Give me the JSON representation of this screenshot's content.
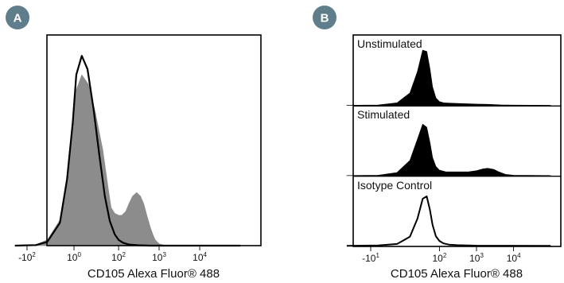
{
  "chart_data": [
    {
      "type": "area",
      "panel_label": "A",
      "xlabel": "CD105 Alexa Fluor® 488",
      "ylabel": "",
      "x_scale": "biexponential",
      "xlim": [
        -200,
        100000
      ],
      "ylim": [
        0,
        1.1
      ],
      "grid": false,
      "x_ticks": [
        {
          "value": -100,
          "base": "-10",
          "exp": "2"
        },
        {
          "value": 1,
          "base": "10",
          "exp": "0"
        },
        {
          "value": 100,
          "base": "10",
          "exp": "2"
        },
        {
          "value": 1000,
          "base": "10",
          "exp": "3"
        },
        {
          "value": 10000,
          "base": "10",
          "exp": "4"
        }
      ],
      "series": [
        {
          "fill": "#8c8c8c",
          "x": [
            -200,
            -60,
            -30,
            -10,
            -5,
            0,
            3,
            8,
            15,
            25,
            40,
            55,
            65,
            80,
            100,
            120,
            150,
            180,
            220,
            280,
            350,
            420,
            500,
            600,
            700,
            800,
            1000,
            1200,
            1500,
            100000
          ],
          "y": [
            0,
            0.005,
            0.03,
            0.15,
            0.35,
            0.6,
            0.82,
            0.9,
            0.85,
            0.7,
            0.5,
            0.3,
            0.2,
            0.17,
            0.16,
            0.16,
            0.18,
            0.22,
            0.26,
            0.28,
            0.26,
            0.22,
            0.16,
            0.1,
            0.06,
            0.03,
            0.01,
            0.005,
            0,
            0
          ]
        },
        {
          "stroke": "#000000",
          "x": [
            -200,
            -60,
            -30,
            -12,
            -5,
            0,
            3,
            8,
            14,
            22,
            32,
            45,
            60,
            80,
            100,
            130,
            180,
            300,
            600,
            100000
          ],
          "y": [
            0,
            0.003,
            0.02,
            0.12,
            0.35,
            0.65,
            0.9,
            1.0,
            0.93,
            0.72,
            0.48,
            0.26,
            0.13,
            0.06,
            0.03,
            0.015,
            0.006,
            0.002,
            0,
            0
          ]
        }
      ]
    },
    {
      "type": "area",
      "panel_label": "B",
      "xlabel": "CD105 Alexa Fluor® 488",
      "ylabel": "",
      "x_scale": "biexponential",
      "xlim": [
        -50,
        100000
      ],
      "grid": false,
      "x_ticks": [
        {
          "value": -10,
          "base": "-10",
          "exp": "1"
        },
        {
          "value": 100,
          "base": "10",
          "exp": "2"
        },
        {
          "value": 1000,
          "base": "10",
          "exp": "3"
        },
        {
          "value": 10000,
          "base": "10",
          "exp": "4"
        }
      ],
      "panels": [
        {
          "label": "Unstimulated",
          "style": "filled",
          "x": [
            -50,
            -5,
            5,
            15,
            25,
            35,
            45,
            55,
            65,
            80,
            100,
            130,
            180,
            300,
            600,
            1000,
            2000,
            3000,
            5000,
            10000,
            100000
          ],
          "y": [
            0,
            0.005,
            0.04,
            0.2,
            0.55,
            0.9,
            0.88,
            0.6,
            0.3,
            0.12,
            0.06,
            0.04,
            0.035,
            0.03,
            0.025,
            0.02,
            0.015,
            0.01,
            0.005,
            0.002,
            0
          ]
        },
        {
          "label": "Stimulated",
          "style": "filled",
          "x": [
            -50,
            -5,
            5,
            15,
            25,
            35,
            45,
            55,
            65,
            80,
            100,
            150,
            300,
            600,
            1000,
            1500,
            2000,
            3000,
            4000,
            6000,
            10000,
            100000
          ],
          "y": [
            0,
            0.005,
            0.05,
            0.25,
            0.6,
            0.85,
            0.8,
            0.55,
            0.3,
            0.15,
            0.09,
            0.06,
            0.06,
            0.06,
            0.08,
            0.11,
            0.12,
            0.1,
            0.06,
            0.02,
            0.005,
            0
          ]
        },
        {
          "label": "Isotype Control",
          "style": "outline",
          "x": [
            -50,
            -5,
            5,
            15,
            25,
            35,
            45,
            55,
            65,
            80,
            100,
            130,
            180,
            300,
            600,
            1000,
            3000,
            100000
          ],
          "y": [
            0,
            0.005,
            0.03,
            0.15,
            0.45,
            0.78,
            0.82,
            0.6,
            0.35,
            0.16,
            0.08,
            0.04,
            0.02,
            0.01,
            0.006,
            0.003,
            0.001,
            0
          ]
        }
      ]
    }
  ]
}
